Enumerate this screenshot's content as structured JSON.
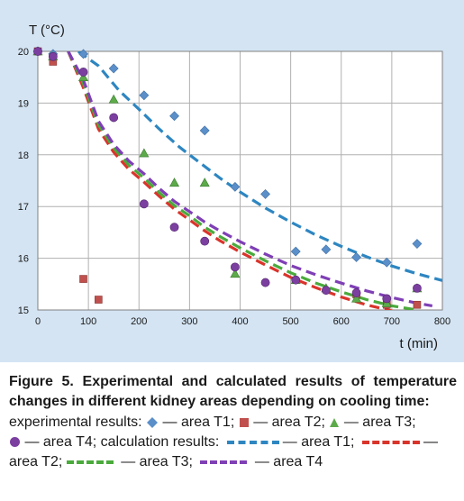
{
  "colors": {
    "panel_bg": "#d4e4f3",
    "plot_bg": "#ffffff",
    "grid": "#b0b0b0",
    "t1": "#5b8fc9",
    "t2": "#c0504d",
    "t3": "#5caa4a",
    "t4": "#7b3fa0",
    "t1_line": "#2e86c1",
    "t2_line": "#d9342b",
    "t3_line": "#4aaa3c",
    "t4_line": "#7f3fb5"
  },
  "chart_data": {
    "type": "scatter",
    "ylabel": "T (°C)",
    "xlabel": "t (min)",
    "xlim": [
      0,
      800
    ],
    "ylim": [
      15,
      20
    ],
    "xticks": [
      0,
      100,
      200,
      300,
      400,
      500,
      600,
      700,
      800
    ],
    "yticks": [
      15,
      16,
      17,
      18,
      19,
      20
    ],
    "grid": true,
    "experimental": [
      {
        "series": "T1",
        "marker": "diamond",
        "points": [
          [
            0,
            20
          ],
          [
            30,
            19.95
          ],
          [
            90,
            19.95
          ],
          [
            150,
            19.67
          ],
          [
            210,
            19.15
          ],
          [
            270,
            18.75
          ],
          [
            330,
            18.47
          ],
          [
            390,
            17.38
          ],
          [
            450,
            17.24
          ],
          [
            510,
            16.13
          ],
          [
            570,
            16.17
          ],
          [
            630,
            16.02
          ],
          [
            690,
            15.92
          ],
          [
            750,
            16.28
          ]
        ]
      },
      {
        "series": "T2",
        "marker": "square",
        "points": [
          [
            0,
            20
          ],
          [
            30,
            19.8
          ],
          [
            90,
            15.6
          ],
          [
            120,
            15.2
          ],
          [
            630,
            15.3
          ],
          [
            690,
            15.1
          ],
          [
            750,
            15.1
          ]
        ]
      },
      {
        "series": "T3",
        "marker": "triangle",
        "points": [
          [
            0,
            20
          ],
          [
            30,
            19.9
          ],
          [
            90,
            19.5
          ],
          [
            150,
            19.07
          ],
          [
            210,
            18.03
          ],
          [
            270,
            17.46
          ],
          [
            330,
            17.46
          ],
          [
            390,
            15.7
          ],
          [
            510,
            15.58
          ],
          [
            570,
            15.42
          ],
          [
            630,
            15.22
          ],
          [
            690,
            15.13
          ],
          [
            750,
            15.42
          ]
        ]
      },
      {
        "series": "T4",
        "marker": "circle",
        "points": [
          [
            0,
            20
          ],
          [
            30,
            19.9
          ],
          [
            90,
            19.6
          ],
          [
            150,
            18.72
          ],
          [
            210,
            17.05
          ],
          [
            270,
            16.6
          ],
          [
            330,
            16.33
          ],
          [
            390,
            15.83
          ],
          [
            450,
            15.53
          ],
          [
            510,
            15.58
          ],
          [
            570,
            15.38
          ],
          [
            630,
            15.33
          ],
          [
            690,
            15.22
          ],
          [
            750,
            15.42
          ]
        ]
      }
    ],
    "calculated": [
      {
        "series": "T1",
        "points": [
          [
            80,
            20
          ],
          [
            120,
            19.72
          ],
          [
            160,
            19.25
          ],
          [
            200,
            18.88
          ],
          [
            240,
            18.5
          ],
          [
            280,
            18.15
          ],
          [
            320,
            17.85
          ],
          [
            360,
            17.55
          ],
          [
            400,
            17.28
          ],
          [
            450,
            16.97
          ],
          [
            500,
            16.7
          ],
          [
            550,
            16.45
          ],
          [
            600,
            16.23
          ],
          [
            650,
            16.03
          ],
          [
            700,
            15.85
          ],
          [
            750,
            15.7
          ],
          [
            800,
            15.57
          ]
        ]
      },
      {
        "series": "T2",
        "points": [
          [
            60,
            20
          ],
          [
            90,
            19.3
          ],
          [
            120,
            18.5
          ],
          [
            150,
            18.05
          ],
          [
            180,
            17.72
          ],
          [
            210,
            17.47
          ],
          [
            240,
            17.2
          ],
          [
            270,
            16.95
          ],
          [
            300,
            16.74
          ],
          [
            330,
            16.53
          ],
          [
            360,
            16.34
          ],
          [
            400,
            16.12
          ],
          [
            450,
            15.87
          ],
          [
            500,
            15.63
          ],
          [
            550,
            15.43
          ],
          [
            600,
            15.25
          ],
          [
            650,
            15.1
          ],
          [
            700,
            14.98
          ],
          [
            750,
            14.9
          ]
        ]
      },
      {
        "series": "T3",
        "points": [
          [
            60,
            20
          ],
          [
            90,
            19.38
          ],
          [
            120,
            18.58
          ],
          [
            150,
            18.13
          ],
          [
            180,
            17.8
          ],
          [
            210,
            17.55
          ],
          [
            240,
            17.27
          ],
          [
            270,
            17.02
          ],
          [
            300,
            16.82
          ],
          [
            330,
            16.6
          ],
          [
            360,
            16.42
          ],
          [
            400,
            16.2
          ],
          [
            450,
            15.95
          ],
          [
            500,
            15.72
          ],
          [
            550,
            15.52
          ],
          [
            600,
            15.35
          ],
          [
            650,
            15.2
          ],
          [
            700,
            15.08
          ],
          [
            750,
            15.0
          ]
        ]
      },
      {
        "series": "T4",
        "points": [
          [
            60,
            20
          ],
          [
            90,
            19.45
          ],
          [
            120,
            18.65
          ],
          [
            150,
            18.2
          ],
          [
            180,
            17.88
          ],
          [
            210,
            17.63
          ],
          [
            240,
            17.35
          ],
          [
            270,
            17.1
          ],
          [
            300,
            16.9
          ],
          [
            330,
            16.7
          ],
          [
            360,
            16.53
          ],
          [
            400,
            16.32
          ],
          [
            450,
            16.08
          ],
          [
            500,
            15.86
          ],
          [
            550,
            15.68
          ],
          [
            600,
            15.52
          ],
          [
            650,
            15.37
          ],
          [
            700,
            15.24
          ],
          [
            750,
            15.13
          ],
          [
            780,
            15.08
          ]
        ]
      }
    ]
  },
  "caption": {
    "title": "Figure 5. Experimental and calculated results of temperature changes in different kidney areas depending on cooling time:",
    "exp_intro": "experimental results:",
    "area_t1": "— area T1;",
    "area_t2": "— area T2;",
    "area_t3": "— area T3;",
    "area_t4": "— area T4;",
    "calc_intro": "calculation results:",
    "calc_t1": "area T1;",
    "calc_t2_prefix": "area T2;",
    "calc_t3": "— area T3;",
    "calc_t4": "— area T4"
  }
}
